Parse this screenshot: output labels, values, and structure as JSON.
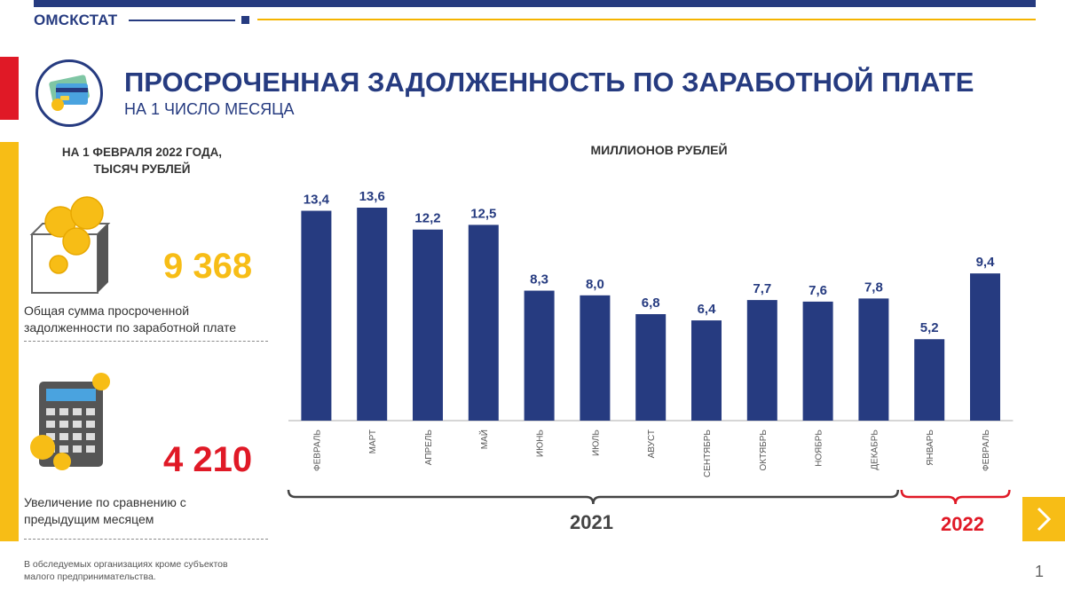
{
  "header": {
    "brand": "ОМСКСТАТ",
    "title": "ПРОСРОЧЕННАЯ ЗАДОЛЖЕННОСТЬ ПО ЗАРАБОТНОЙ ПЛАТЕ",
    "subtitle": "НА 1 ЧИСЛО МЕСЯЦА"
  },
  "left_panel": {
    "heading_line1": "НА 1 ФЕВРАЛЯ  2022 ГОДА,",
    "heading_line2": "ТЫСЯЧ РУБЛЕЙ",
    "total_value": "9 368",
    "total_label_line1": "Общая сумма просроченной",
    "total_label_line2": "задолженности  по заработной плате",
    "increase_value": "4 210",
    "increase_label_line1": "Увеличение  по сравнению с",
    "increase_label_line2": "предыдущим  месяцем"
  },
  "footnote": {
    "line1": "В обследуемых организациях кроме субъектов",
    "line2": "малого  предпринимательства."
  },
  "page_number": "1",
  "icons": {
    "title": "credit-card-icon",
    "total": "coin-box-icon",
    "increase": "calculator-icon",
    "next": "chevron-right-icon"
  },
  "colors": {
    "brand_blue": "#263b80",
    "accent_yellow": "#f7bd16",
    "accent_red": "#e01926",
    "bar": "#263b80"
  },
  "chart_data": {
    "type": "bar",
    "unit_label": "МИЛЛИОНОВ РУБЛЕЙ",
    "categories": [
      "ФЕВРАЛЬ",
      "МАРТ",
      "АПРЕЛЬ",
      "МАЙ",
      "ИЮНЬ",
      "ИЮЛЬ",
      "АВУСТ",
      "СЕНТЯБРЬ",
      "ОКТЯБРЬ",
      "НОЯБРЬ",
      "ДЕКАБРЬ",
      "ЯНВАРЬ",
      "ФЕВРАЛЬ"
    ],
    "values": [
      13.4,
      13.6,
      12.2,
      12.5,
      8.3,
      8.0,
      6.8,
      6.4,
      7.7,
      7.6,
      7.8,
      5.2,
      9.4
    ],
    "value_labels": [
      "13,4",
      "13,6",
      "12,2",
      "12,5",
      "8,3",
      "8,0",
      "6,8",
      "6,4",
      "7,7",
      "7,6",
      "7,8",
      "5,2",
      "9,4"
    ],
    "year_groups": [
      {
        "label": "2021",
        "first_index": 0,
        "last_index": 10,
        "color": "#444444"
      },
      {
        "label": "2022",
        "first_index": 11,
        "last_index": 12,
        "color": "#e01926"
      }
    ],
    "grid": false,
    "legend": "none"
  }
}
